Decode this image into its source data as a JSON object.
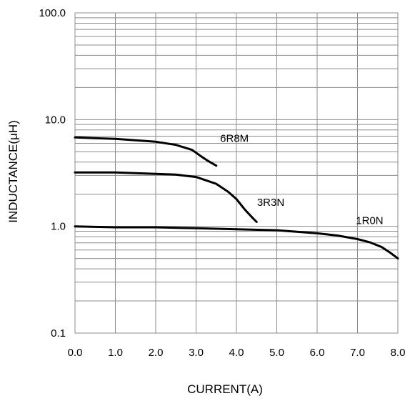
{
  "chart_data": {
    "type": "line",
    "xlabel": "CURRENT(A)",
    "ylabel": "INDUCTANCE(μH)",
    "xlim": [
      0,
      8
    ],
    "ylim": [
      0.1,
      100
    ],
    "yscale": "log",
    "grid": true,
    "x_ticks": [
      "0.0",
      "1.0",
      "2.0",
      "3.0",
      "4.0",
      "5.0",
      "6.0",
      "7.0",
      "8.0"
    ],
    "y_ticks": [
      "0.1",
      "1.0",
      "10.0",
      "100.0"
    ],
    "series": [
      {
        "name": "6R8M",
        "x": [
          0,
          1,
          2,
          2.5,
          2.9,
          3.1,
          3.3,
          3.5
        ],
        "y": [
          6.8,
          6.6,
          6.2,
          5.8,
          5.2,
          4.6,
          4.1,
          3.7
        ]
      },
      {
        "name": "3R3N",
        "x": [
          0,
          1,
          2,
          2.5,
          3,
          3.5,
          3.8,
          4.0,
          4.2,
          4.4,
          4.5
        ],
        "y": [
          3.2,
          3.2,
          3.1,
          3.05,
          2.9,
          2.5,
          2.1,
          1.8,
          1.45,
          1.2,
          1.1
        ]
      },
      {
        "name": "1R0N",
        "x": [
          0,
          1,
          2,
          3,
          4,
          5,
          6,
          6.5,
          7,
          7.3,
          7.6,
          7.8,
          8.0
        ],
        "y": [
          1.0,
          0.98,
          0.98,
          0.96,
          0.94,
          0.92,
          0.86,
          0.82,
          0.76,
          0.71,
          0.64,
          0.57,
          0.5
        ]
      }
    ]
  }
}
